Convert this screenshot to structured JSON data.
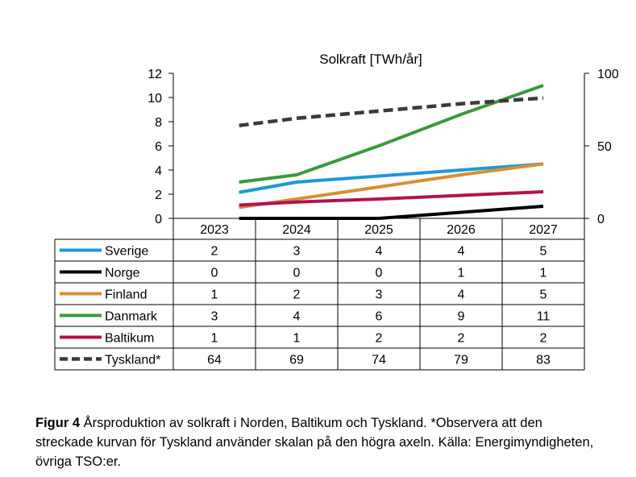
{
  "chart_data": {
    "type": "line",
    "title": "Solkraft [TWh/år]",
    "categories": [
      "2023",
      "2024",
      "2025",
      "2026",
      "2027"
    ],
    "x_plot": [
      0.3,
      1.0,
      2.0,
      3.0,
      4.0
    ],
    "ylim_left": [
      0,
      12
    ],
    "yticks_left": [
      "0",
      "2",
      "4",
      "6",
      "8",
      "10",
      "12"
    ],
    "ylim_right": [
      0,
      100
    ],
    "yticks_right": [
      "0",
      "50",
      "100"
    ],
    "series": [
      {
        "name": "Sverige",
        "axis": "left",
        "color": "#1b9ad6",
        "dashed": false,
        "plot_values": [
          2.15,
          3.0,
          3.5,
          4.0,
          4.5
        ],
        "table": [
          "2",
          "3",
          "4",
          "4",
          "5"
        ]
      },
      {
        "name": "Norge",
        "axis": "left",
        "color": "#000000",
        "dashed": false,
        "plot_values": [
          0,
          0,
          0,
          0.5,
          1.0
        ],
        "table": [
          "0",
          "0",
          "0",
          "1",
          "1"
        ]
      },
      {
        "name": "Finland",
        "axis": "left",
        "color": "#d88f33",
        "dashed": false,
        "plot_values": [
          0.9,
          1.6,
          2.6,
          3.6,
          4.5
        ],
        "table": [
          "1",
          "2",
          "3",
          "4",
          "5"
        ]
      },
      {
        "name": "Danmark",
        "axis": "left",
        "color": "#3a9a3a",
        "dashed": false,
        "plot_values": [
          3.0,
          3.6,
          6.0,
          8.6,
          11.0
        ],
        "table": [
          "3",
          "4",
          "6",
          "9",
          "11"
        ]
      },
      {
        "name": "Baltikum",
        "axis": "left",
        "color": "#b5104f",
        "dashed": false,
        "plot_values": [
          1.1,
          1.35,
          1.6,
          1.9,
          2.2
        ],
        "table": [
          "1",
          "1",
          "2",
          "2",
          "2"
        ]
      },
      {
        "name": "Tyskland*",
        "axis": "right",
        "color": "#3a3a3a",
        "dashed": true,
        "plot_values": [
          64,
          69,
          74,
          79,
          83
        ],
        "table": [
          "64",
          "69",
          "74",
          "79",
          "83"
        ]
      }
    ]
  },
  "caption": {
    "label": "Figur 4",
    "text": " Årsproduktion av solkraft i Norden, Baltikum och Tyskland. *Observera att den streckade kurvan för Tyskland använder skalan på den högra axeln. Källa: Energimyndigheten, övriga TSO:er."
  }
}
